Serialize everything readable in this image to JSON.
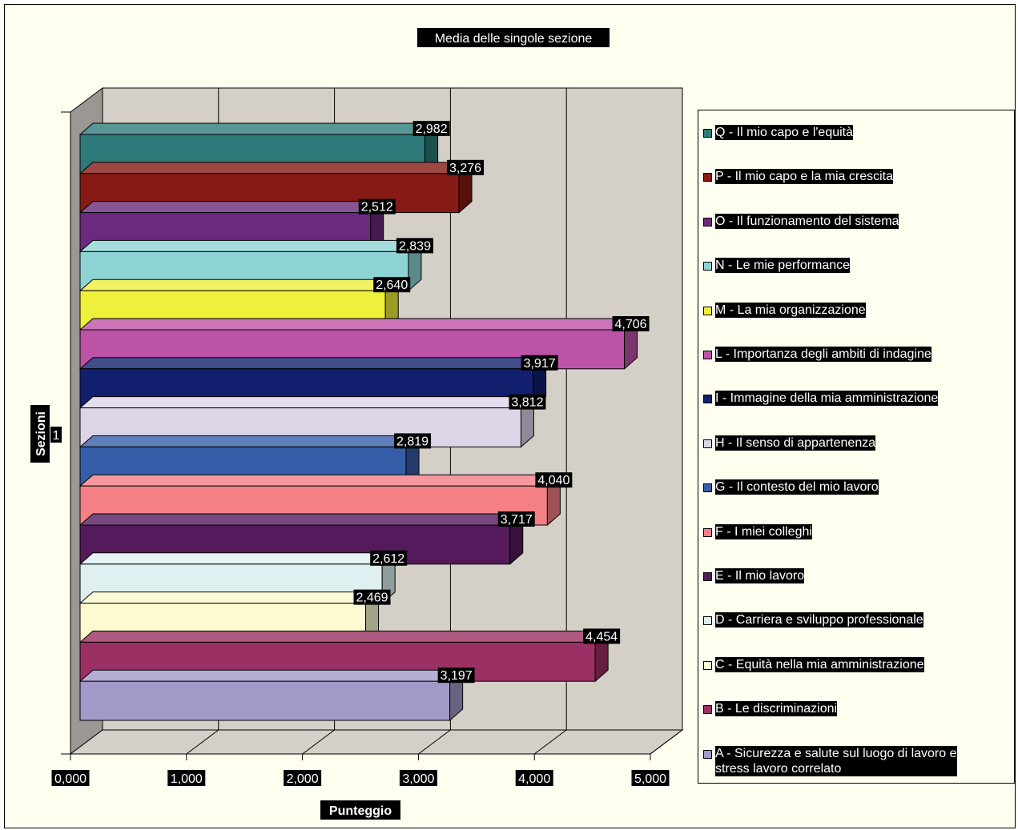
{
  "chart_data": {
    "type": "bar",
    "orientation": "horizontal",
    "style": "3d",
    "title": "Media delle singole sezione",
    "xlabel": "Punteggio",
    "ylabel": "Sezioni",
    "category": "1",
    "xlim": [
      0,
      5
    ],
    "x_ticks": [
      "0,000",
      "1,000",
      "2,000",
      "3,000",
      "4,000",
      "5,000"
    ],
    "grid": true,
    "legend_position": "right",
    "series": [
      {
        "name": "Q - Il mio capo e l'equità",
        "value": 2.982,
        "label": "2,982",
        "color": "#2e7a7a"
      },
      {
        "name": "P - Il mio capo e la mia crescita",
        "value": 3.276,
        "label": "3,276",
        "color": "#861a14"
      },
      {
        "name": "O - Il funzionamento del sistema",
        "value": 2.512,
        "label": "2,512",
        "color": "#6b2a7d"
      },
      {
        "name": "N - Le mie performance",
        "value": 2.839,
        "label": "2,839",
        "color": "#8ed3d3"
      },
      {
        "name": "M - La mia organizzazione",
        "value": 2.64,
        "label": "2,640",
        "color": "#eef03a"
      },
      {
        "name": "L - Importanza degli ambiti di indagine",
        "value": 4.706,
        "label": "4,706",
        "color": "#bd53a6"
      },
      {
        "name": "I  - Immagine della mia amministrazione",
        "value": 3.917,
        "label": "3,917",
        "color": "#111f6e"
      },
      {
        "name": "H - Il senso di appartenenza",
        "value": 3.812,
        "label": "3,812",
        "color": "#dcd5e8"
      },
      {
        "name": "G - Il contesto del mio lavoro",
        "value": 2.819,
        "label": "2,819",
        "color": "#365da8"
      },
      {
        "name": "F - I miei colleghi",
        "value": 4.04,
        "label": "4,040",
        "color": "#f48086"
      },
      {
        "name": "E - Il mio lavoro",
        "value": 3.717,
        "label": "3,717",
        "color": "#551a5c"
      },
      {
        "name": "D - Carriera e sviluppo professionale",
        "value": 2.612,
        "label": "2,612",
        "color": "#dff0f0"
      },
      {
        "name": "C - Equità nella mia amministrazione",
        "value": 2.469,
        "label": "2,469",
        "color": "#fbfad0"
      },
      {
        "name": "B - Le discriminazioni",
        "value": 4.454,
        "label": "4,454",
        "color": "#9a3063"
      },
      {
        "name": "A - Sicurezza e salute sul luogo di lavoro e\nstress lavoro correlato",
        "value": 3.197,
        "label": "3,197",
        "color": "#a299c8"
      }
    ]
  }
}
